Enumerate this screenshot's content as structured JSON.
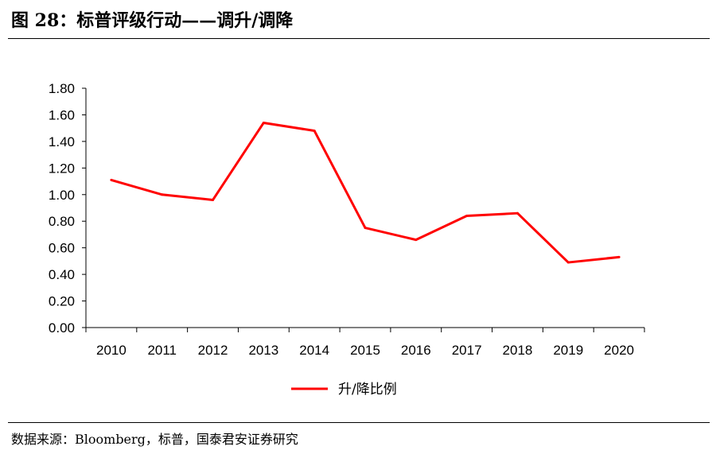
{
  "header": {
    "title": "图 28：标普评级行动——调升/调降"
  },
  "footer": {
    "source": "数据来源：Bloomberg，标普，国泰君安证券研究"
  },
  "colors": {
    "line": "#ff0000",
    "axis": "#000000"
  },
  "chart_data": {
    "type": "line",
    "x": [
      "2010",
      "2011",
      "2012",
      "2013",
      "2014",
      "2015",
      "2016",
      "2017",
      "2018",
      "2019",
      "2020"
    ],
    "series": [
      {
        "name": "升/降比例",
        "values": [
          1.11,
          1.0,
          0.96,
          1.54,
          1.48,
          0.75,
          0.66,
          0.84,
          0.86,
          0.49,
          0.53
        ]
      }
    ],
    "yticks": [
      "0.00",
      "0.20",
      "0.40",
      "0.60",
      "0.80",
      "1.00",
      "1.20",
      "1.40",
      "1.60",
      "1.80"
    ],
    "ylim": [
      0,
      1.8
    ],
    "grid": false,
    "legend": "bottom-center",
    "title": "",
    "xlabel": "",
    "ylabel": ""
  }
}
